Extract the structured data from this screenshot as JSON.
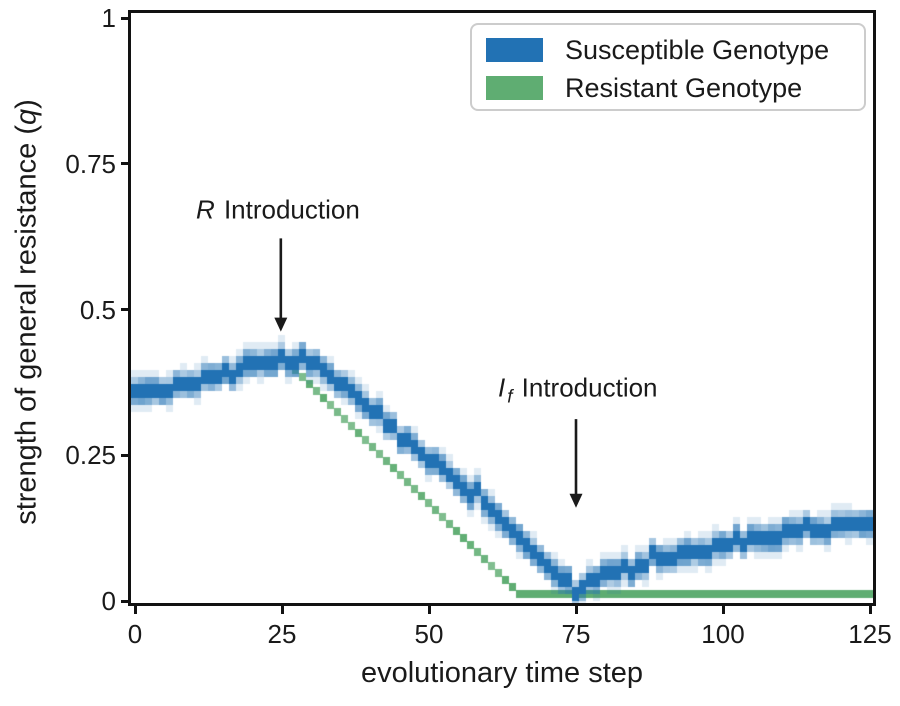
{
  "figure": {
    "colors": {
      "background": "#ffffff",
      "text": "#1a1a1a",
      "spine": "#121212",
      "legend_border": "#cccccc"
    }
  },
  "chart_data": {
    "type": "line",
    "render_style": "pixelated_density_band",
    "title": "",
    "xlabel": "evolutionary time step",
    "ylabel_prefix": "strength of general resistance (",
    "ylabel_italic": "q",
    "ylabel_suffix": ")",
    "xlim": [
      0,
      125
    ],
    "ylim": [
      0,
      1
    ],
    "grid": false,
    "xticks": [
      0,
      25,
      50,
      75,
      100,
      125
    ],
    "xtick_labels": [
      "0",
      "25",
      "50",
      "75",
      "100",
      "125"
    ],
    "yticks": [
      0,
      0.25,
      0.5,
      0.75,
      1
    ],
    "ytick_labels": [
      "0",
      "0.25",
      "0.5",
      "0.75",
      "1"
    ],
    "legend": {
      "position": "upper right",
      "items": [
        {
          "label": "Susceptible Genotype",
          "color": "#2272b4"
        },
        {
          "label": "Resistant Genotype",
          "color": "#5fad72"
        }
      ]
    },
    "series": [
      {
        "name": "Susceptible Genotype",
        "color": "#2272b4",
        "style": "density_band",
        "points": [
          [
            0,
            0.36
          ],
          [
            4,
            0.36
          ],
          [
            8,
            0.369
          ],
          [
            12,
            0.381
          ],
          [
            16,
            0.395
          ],
          [
            20,
            0.406
          ],
          [
            24,
            0.412
          ],
          [
            28,
            0.413
          ],
          [
            31,
            0.403
          ],
          [
            34,
            0.378
          ],
          [
            38,
            0.345
          ],
          [
            43,
            0.303
          ],
          [
            48,
            0.261
          ],
          [
            53,
            0.219
          ],
          [
            58,
            0.177
          ],
          [
            63,
            0.135
          ],
          [
            68,
            0.086
          ],
          [
            71,
            0.057
          ],
          [
            74,
            0.022
          ],
          [
            76,
            0.028
          ],
          [
            79,
            0.041
          ],
          [
            83,
            0.055
          ],
          [
            88,
            0.068
          ],
          [
            93,
            0.08
          ],
          [
            98,
            0.091
          ],
          [
            103,
            0.101
          ],
          [
            108,
            0.11
          ],
          [
            113,
            0.118
          ],
          [
            118,
            0.125
          ],
          [
            125,
            0.133
          ]
        ]
      },
      {
        "name": "Resistant Genotype",
        "color": "#5fad72",
        "style": "pixel_line",
        "points": [
          [
            26,
            0.41
          ],
          [
            29,
            0.385
          ],
          [
            34,
            0.333
          ],
          [
            39,
            0.281
          ],
          [
            44,
            0.229
          ],
          [
            49,
            0.177
          ],
          [
            54,
            0.125
          ],
          [
            59,
            0.073
          ],
          [
            63,
            0.031
          ],
          [
            65,
            0.012
          ],
          [
            125,
            0.012
          ]
        ]
      }
    ],
    "annotations": [
      {
        "italic": "R",
        "sub": "",
        "rest": " Introduction",
        "text_x": 24.3,
        "text_y": 0.67,
        "arrow_x": 24.8,
        "arrow_y_from": 0.622,
        "arrow_y_to": 0.462
      },
      {
        "italic": "I",
        "sub": "f",
        "rest": " Introduction",
        "text_x": 75.3,
        "text_y": 0.362,
        "arrow_x": 75.0,
        "arrow_y_from": 0.312,
        "arrow_y_to": 0.16
      }
    ]
  }
}
